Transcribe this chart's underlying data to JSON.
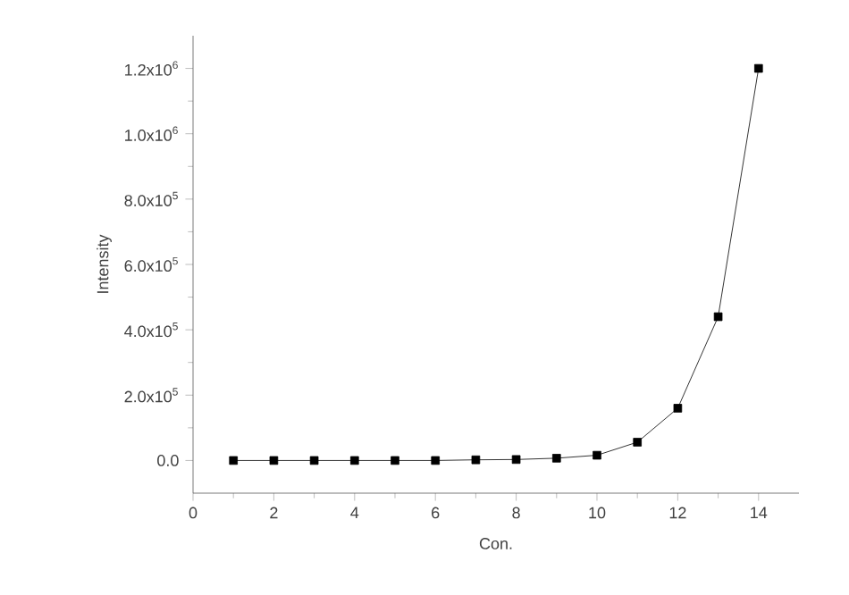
{
  "chart_data": {
    "type": "line",
    "xlabel": "Con.",
    "ylabel": "Intensity",
    "x": [
      1,
      2,
      3,
      4,
      5,
      6,
      7,
      8,
      9,
      10,
      11,
      12,
      13,
      14
    ],
    "series": [
      {
        "color": "#000000",
        "values": [
          0,
          0,
          0,
          0,
          0,
          0,
          2000,
          3000,
          7000,
          16000,
          56000,
          160000,
          440000,
          1200000
        ]
      }
    ],
    "xlim": [
      0,
      15
    ],
    "xticks": [
      0,
      2,
      4,
      6,
      8,
      10,
      12,
      14
    ],
    "ylim": [
      -100000,
      1300000
    ],
    "yticks": [
      {
        "value": 0,
        "label": "0.0"
      },
      {
        "value": 200000,
        "label": "2.0x10$^{5}$"
      },
      {
        "value": 400000,
        "label": "4.0x10$^{5}$"
      },
      {
        "value": 600000,
        "label": "6.0x10$^{5}$"
      },
      {
        "value": 800000,
        "label": "8.0x10$^{5}$"
      },
      {
        "value": 1000000,
        "label": "1.0x10$^{6}$"
      },
      {
        "value": 1200000,
        "label": "1.2x10$^{6}$"
      }
    ],
    "grid": false,
    "marker": "square",
    "line_style": "solid"
  }
}
